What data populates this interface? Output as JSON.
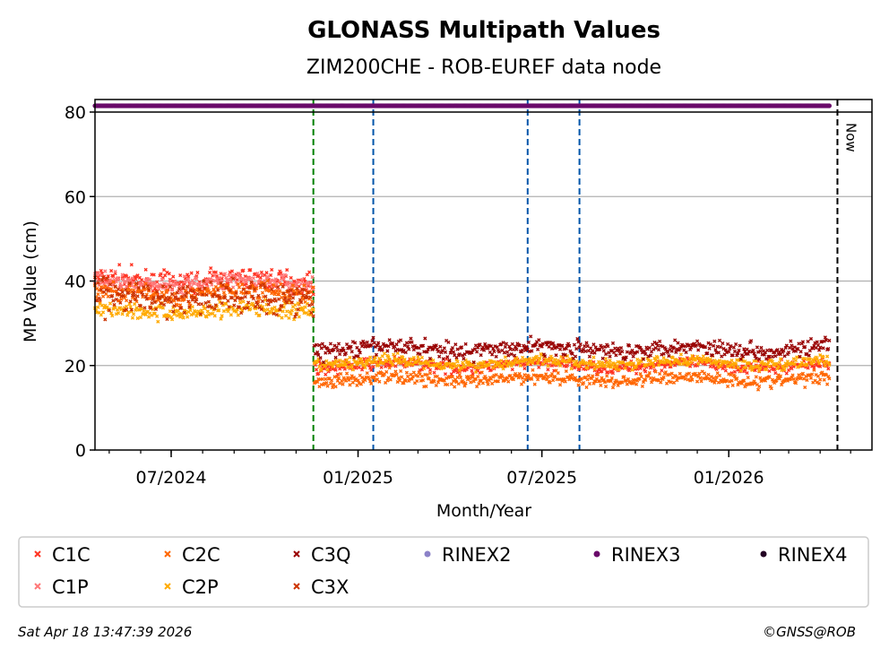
{
  "chart_data": {
    "type": "scatter",
    "title": "GLONASS Multipath Values",
    "subtitle": "ZIM200CHE - ROB-EUREF data node",
    "xlabel": "Month/Year",
    "ylabel": "MP Value (cm)",
    "xlim": [
      "2024-04-17",
      "2026-05-22"
    ],
    "ylim": [
      0,
      80
    ],
    "yticks": [
      0,
      20,
      40,
      60,
      80
    ],
    "xticks": [
      {
        "date": "2024-07-01",
        "label": "07/2024"
      },
      {
        "date": "2025-01-01",
        "label": "01/2025"
      },
      {
        "date": "2025-07-01",
        "label": "07/2025"
      },
      {
        "date": "2026-01-01",
        "label": "01/2026"
      }
    ],
    "grid": "y",
    "vlines": [
      {
        "date": "2024-11-18",
        "color": "#008000"
      },
      {
        "date": "2025-01-16",
        "color": "#0055aa"
      },
      {
        "date": "2025-06-17",
        "color": "#0055aa"
      },
      {
        "date": "2025-08-07",
        "color": "#0055aa"
      },
      {
        "date": "2026-04-18",
        "color": "#000000",
        "label": "Now"
      }
    ],
    "series": [
      {
        "name": "C1C",
        "color": "#ff3322",
        "marker": "x",
        "segments": [
          {
            "from": "2024-04-17",
            "to": "2024-11-18",
            "mean": 40,
            "sd": 1.3
          },
          {
            "from": "2024-11-19",
            "to": "2026-04-10",
            "mean": 20,
            "sd": 0.7
          }
        ]
      },
      {
        "name": "C1P",
        "color": "#ff7777",
        "marker": "x",
        "segments": [
          {
            "from": "2024-04-17",
            "to": "2024-11-18",
            "mean": 39.5,
            "sd": 1.0
          }
        ]
      },
      {
        "name": "C2C",
        "color": "#ff6600",
        "marker": "x",
        "segments": [
          {
            "from": "2024-04-17",
            "to": "2024-11-18",
            "mean": 37,
            "sd": 1.2
          },
          {
            "from": "2024-11-19",
            "to": "2026-04-10",
            "mean": 16.8,
            "sd": 0.8
          }
        ]
      },
      {
        "name": "C2P",
        "color": "#ffaa00",
        "marker": "x",
        "segments": [
          {
            "from": "2024-04-17",
            "to": "2024-11-18",
            "mean": 33,
            "sd": 1.0
          },
          {
            "from": "2024-11-19",
            "to": "2026-04-10",
            "mean": 20.7,
            "sd": 0.7
          }
        ]
      },
      {
        "name": "C3Q",
        "color": "#990000",
        "marker": "x",
        "segments": [
          {
            "from": "2024-11-19",
            "to": "2026-04-10",
            "mean": 24,
            "sd": 1.0
          }
        ]
      },
      {
        "name": "C3X",
        "color": "#cc3300",
        "marker": "x",
        "segments": [
          {
            "from": "2024-04-17",
            "to": "2024-11-18",
            "mean": 36,
            "sd": 2.2
          }
        ]
      },
      {
        "name": "RINEX2",
        "color": "#8c82c8",
        "marker": "o",
        "segments": []
      },
      {
        "name": "RINEX3",
        "color": "#6a0a6a",
        "marker": "o",
        "strip": true,
        "segments": [
          {
            "from": "2024-04-17",
            "to": "2026-04-10"
          }
        ]
      },
      {
        "name": "RINEX4",
        "color": "#220022",
        "marker": "o",
        "segments": []
      }
    ],
    "legend_placement": "bottom"
  },
  "footer": {
    "timestamp": "Sat Apr 18 13:47:39 2026",
    "copyright": "©GNSS@ROB"
  }
}
